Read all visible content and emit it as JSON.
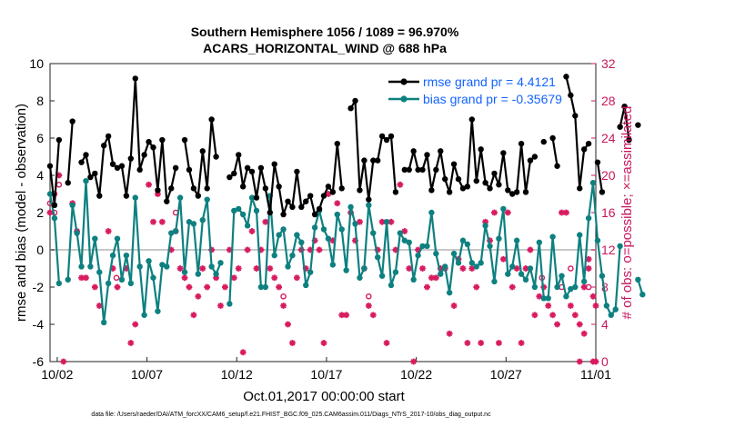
{
  "colors": {
    "rmse": "#000000",
    "bias": "#0e8080",
    "obs": "#d81b60",
    "zero_line": "#c8c8c8",
    "legend_text": "#1463ff",
    "right_axis": "#c8175d"
  },
  "chart_data": {
    "type": "line",
    "title": "Southern Hemisphere 1056 / 1089 = 96.970%",
    "subtitle": "ACARS_HORIZONTAL_WIND @ 688 hPa",
    "xlabel": "Oct.01,2017 00:00:00 start",
    "ylabel": "rmse and bias (model - observation)",
    "y2label": "# of obs: o=possible; ×=assimilated",
    "xlim": [
      1.6,
      32.0
    ],
    "ylim": [
      -6,
      10
    ],
    "y2lim": [
      0,
      32
    ],
    "grid": false,
    "legend_position": "top-right",
    "x_ticks": [
      {
        "value": 2.0,
        "label": "10/02"
      },
      {
        "value": 7.0,
        "label": "10/07"
      },
      {
        "value": 12.0,
        "label": "10/12"
      },
      {
        "value": 17.0,
        "label": "10/17"
      },
      {
        "value": 22.0,
        "label": "10/22"
      },
      {
        "value": 27.0,
        "label": "10/27"
      },
      {
        "value": 32.0,
        "label": "11/01"
      }
    ],
    "y_ticks": [
      -6,
      -4,
      -2,
      0,
      2,
      4,
      6,
      8,
      10
    ],
    "y2_ticks": [
      0,
      4,
      8,
      12,
      16,
      20,
      24,
      28,
      32
    ],
    "x_step": 0.25,
    "series": [
      {
        "name": "rmse grand pr = 4.4121",
        "x_start": 1.6,
        "values": [
          4.5,
          2.4,
          5.9,
          null,
          3.6,
          6.9,
          null,
          4.7,
          5.1,
          3.9,
          4.1,
          2.9,
          5.6,
          6.1,
          4.6,
          4.4,
          4.5,
          2.9,
          4.9,
          9.2,
          4.3,
          5.1,
          5.8,
          5.5,
          3.2,
          5.9,
          2.6,
          3.3,
          4.4,
          null,
          5.9,
          4.3,
          3.3,
          2.9,
          5.3,
          3.3,
          7.0,
          5.0,
          null,
          null,
          3.9,
          4.1,
          5.1,
          3.4,
          4.4,
          4.2,
          2.8,
          4.4,
          3.3,
          2.0,
          4.6,
          3.4,
          1.9,
          2.6,
          2.3,
          4.2,
          2.3,
          2.6,
          2.9,
          1.9,
          2.2,
          2.9,
          3.4,
          3.1,
          5.7,
          3.3,
          null,
          7.6,
          8.0,
          3.2,
          4.8,
          2.7,
          4.8,
          4.8,
          6.1,
          5.9,
          6.1,
          3.1,
          null,
          4.3,
          4.3,
          5.3,
          4.3,
          4.3,
          5.1,
          3.2,
          4.3,
          5.3,
          3.8,
          3.1,
          4.6,
          3.8,
          3.3,
          3.4,
          7.0,
          3.7,
          5.4,
          3.6,
          3.3,
          4.1,
          3.5,
          5.2,
          3.2,
          3.0,
          3.1,
          5.7,
          3.1,
          4.8,
          5.0,
          null,
          5.8,
          null,
          6.0,
          4.5,
          null,
          9.3,
          8.3,
          7.2,
          3.3,
          5.4,
          5.7,
          null,
          4.7,
          3.1,
          null,
          null,
          null,
          6.6,
          7.7,
          5.9,
          null,
          6.7
        ]
      },
      {
        "name": "bias grand pr = -0.35679",
        "x_start": 1.6,
        "values": [
          3.0,
          1.7,
          -1.8,
          null,
          -1.6,
          2.4,
          0.9,
          -0.9,
          3.7,
          -0.9,
          0.6,
          -1.2,
          -3.9,
          -1.8,
          -0.3,
          0.6,
          -1.6,
          -0.3,
          -1.8,
          2.8,
          -0.9,
          -3.5,
          -0.6,
          -1.5,
          -3.3,
          -0.8,
          -0.9,
          0.9,
          1.0,
          2.8,
          -1.2,
          1.5,
          1.4,
          -1.3,
          1.6,
          2.7,
          -0.9,
          -1.3,
          -0.7,
          null,
          -2.9,
          2.1,
          2.2,
          1.9,
          1.3,
          2.8,
          2.1,
          -2.0,
          -2.0,
          2.9,
          -0.3,
          0.8,
          1.1,
          -0.9,
          -0.3,
          0.8,
          0.4,
          -1.9,
          -1.2,
          1.2,
          2.1,
          1.1,
          0.6,
          -0.8,
          1.9,
          1.1,
          -1.1,
          2.3,
          1.4,
          -1.5,
          -1.0,
          2.4,
          0.9,
          -0.4,
          -1.4,
          1.5,
          -1.9,
          -1.2,
          0.9,
          0.5,
          0.4,
          -1.6,
          -0.3,
          0.2,
          0.2,
          2.0,
          -0.2,
          -1.3,
          -0.9,
          -2.3,
          -0.2,
          -0.7,
          0.5,
          0.3,
          -0.7,
          -0.9,
          -0.7,
          1.3,
          0.2,
          -1.7,
          0.6,
          2.2,
          -1.3,
          -0.9,
          0.5,
          -1.3,
          -1.6,
          -1.0,
          -2.0,
          0.4,
          -2.6,
          -2.6,
          0.7,
          -2.0,
          -1.4,
          -2.5,
          -2.1,
          -2.0,
          0.8,
          -1.7,
          1.7,
          3.6,
          0.5,
          -1.4,
          -3.0,
          -3.5,
          -3.2,
          0.2,
          null,
          null,
          null,
          -1.6,
          -2.4
        ]
      }
    ],
    "obs_possible_markers": [
      {
        "x": 1.6,
        "y": 17
      },
      {
        "x": 1.85,
        "y": 16
      },
      {
        "x": 1.85,
        "y": 18
      },
      {
        "x": 2.1,
        "y": 19
      },
      {
        "x": 5.3,
        "y": 9
      },
      {
        "x": 8.6,
        "y": 16
      },
      {
        "x": 14.6,
        "y": 7
      },
      {
        "x": 19.35,
        "y": 7
      },
      {
        "x": 29.0,
        "y": 9
      },
      {
        "x": 30.1,
        "y": 8
      },
      {
        "x": 30.6,
        "y": 10
      },
      {
        "x": 31.6,
        "y": 8
      }
    ],
    "obs_assimilated_markers": [
      {
        "x": 1.6,
        "y": 16
      },
      {
        "x": 2.1,
        "y": 20
      },
      {
        "x": 2.35,
        "y": 0
      },
      {
        "x": 2.85,
        "y": 17
      },
      {
        "x": 3.1,
        "y": 14
      },
      {
        "x": 3.35,
        "y": 9
      },
      {
        "x": 3.6,
        "y": 9
      },
      {
        "x": 4.1,
        "y": 8
      },
      {
        "x": 4.35,
        "y": 6
      },
      {
        "x": 4.85,
        "y": 14
      },
      {
        "x": 5.1,
        "y": 10
      },
      {
        "x": 5.35,
        "y": 8
      },
      {
        "x": 5.85,
        "y": 10
      },
      {
        "x": 6.1,
        "y": 2
      },
      {
        "x": 6.35,
        "y": 4
      },
      {
        "x": 7.1,
        "y": 19
      },
      {
        "x": 7.35,
        "y": 15
      },
      {
        "x": 7.6,
        "y": 18
      },
      {
        "x": 7.85,
        "y": 15
      },
      {
        "x": 8.35,
        "y": 12
      },
      {
        "x": 8.6,
        "y": 14
      },
      {
        "x": 8.85,
        "y": 10
      },
      {
        "x": 9.1,
        "y": 9
      },
      {
        "x": 9.35,
        "y": 8
      },
      {
        "x": 9.6,
        "y": 5
      },
      {
        "x": 9.85,
        "y": 7
      },
      {
        "x": 10.1,
        "y": 10
      },
      {
        "x": 10.35,
        "y": 8
      },
      {
        "x": 10.6,
        "y": 12
      },
      {
        "x": 10.85,
        "y": 9
      },
      {
        "x": 11.1,
        "y": 6
      },
      {
        "x": 11.35,
        "y": 8
      },
      {
        "x": 11.6,
        "y": 12
      },
      {
        "x": 11.85,
        "y": 9
      },
      {
        "x": 12.1,
        "y": 10
      },
      {
        "x": 12.35,
        "y": 1
      },
      {
        "x": 12.6,
        "y": 12
      },
      {
        "x": 12.85,
        "y": 14
      },
      {
        "x": 13.1,
        "y": 10
      },
      {
        "x": 13.35,
        "y": 12
      },
      {
        "x": 13.6,
        "y": 15
      },
      {
        "x": 13.85,
        "y": 10
      },
      {
        "x": 14.1,
        "y": 9
      },
      {
        "x": 14.35,
        "y": 8
      },
      {
        "x": 14.6,
        "y": 6
      },
      {
        "x": 14.85,
        "y": 4
      },
      {
        "x": 15.1,
        "y": 2
      },
      {
        "x": 15.35,
        "y": 9
      },
      {
        "x": 15.6,
        "y": 12
      },
      {
        "x": 15.85,
        "y": 10
      },
      {
        "x": 16.1,
        "y": 12
      },
      {
        "x": 16.35,
        "y": 13
      },
      {
        "x": 16.6,
        "y": 12
      },
      {
        "x": 16.85,
        "y": 2
      },
      {
        "x": 17.1,
        "y": 18
      },
      {
        "x": 17.35,
        "y": 13
      },
      {
        "x": 17.6,
        "y": 17
      },
      {
        "x": 17.85,
        "y": 5
      },
      {
        "x": 18.1,
        "y": 5
      },
      {
        "x": 18.35,
        "y": 16
      },
      {
        "x": 18.6,
        "y": 13
      },
      {
        "x": 18.85,
        "y": 15
      },
      {
        "x": 19.1,
        "y": 10
      },
      {
        "x": 19.35,
        "y": 6
      },
      {
        "x": 19.6,
        "y": 5
      },
      {
        "x": 19.85,
        "y": 12
      },
      {
        "x": 20.1,
        "y": 15
      },
      {
        "x": 20.35,
        "y": 2
      },
      {
        "x": 20.6,
        "y": 15
      },
      {
        "x": 20.85,
        "y": 12
      },
      {
        "x": 21.1,
        "y": 19
      },
      {
        "x": 21.35,
        "y": 14
      },
      {
        "x": 21.6,
        "y": 10
      },
      {
        "x": 21.85,
        "y": 0
      },
      {
        "x": 22.1,
        "y": 12
      },
      {
        "x": 22.35,
        "y": 10
      },
      {
        "x": 22.6,
        "y": 8
      },
      {
        "x": 22.85,
        "y": 9
      },
      {
        "x": 23.1,
        "y": 9
      },
      {
        "x": 23.35,
        "y": 10
      },
      {
        "x": 23.6,
        "y": 10
      },
      {
        "x": 23.85,
        "y": 3
      },
      {
        "x": 24.1,
        "y": 6
      },
      {
        "x": 24.35,
        "y": 11
      },
      {
        "x": 24.6,
        "y": 10
      },
      {
        "x": 24.85,
        "y": 2
      },
      {
        "x": 25.1,
        "y": 10
      },
      {
        "x": 25.35,
        "y": 8
      },
      {
        "x": 25.6,
        "y": 2
      },
      {
        "x": 25.85,
        "y": 15
      },
      {
        "x": 26.1,
        "y": 13
      },
      {
        "x": 26.35,
        "y": 16
      },
      {
        "x": 26.6,
        "y": 2
      },
      {
        "x": 26.85,
        "y": 11
      },
      {
        "x": 27.1,
        "y": 16
      },
      {
        "x": 27.35,
        "y": 8
      },
      {
        "x": 27.6,
        "y": 10
      },
      {
        "x": 27.85,
        "y": 2
      },
      {
        "x": 28.1,
        "y": 10
      },
      {
        "x": 28.35,
        "y": 12
      },
      {
        "x": 28.6,
        "y": 5
      },
      {
        "x": 28.85,
        "y": 7
      },
      {
        "x": 29.1,
        "y": 8
      },
      {
        "x": 29.35,
        "y": 6
      },
      {
        "x": 29.6,
        "y": 5
      },
      {
        "x": 29.85,
        "y": 4
      },
      {
        "x": 30.1,
        "y": 16
      },
      {
        "x": 30.35,
        "y": 16
      },
      {
        "x": 30.6,
        "y": 6
      },
      {
        "x": 30.85,
        "y": 5
      },
      {
        "x": 31.1,
        "y": 4
      },
      {
        "x": 31.35,
        "y": 8
      },
      {
        "x": 31.6,
        "y": 10
      },
      {
        "x": 31.85,
        "y": 7
      },
      {
        "x": 31.6,
        "y": 11
      },
      {
        "x": 31.35,
        "y": 3
      },
      {
        "x": 32.0,
        "y": 6
      },
      {
        "x": 31.85,
        "y": 0
      },
      {
        "x": 31.1,
        "y": 0
      },
      {
        "x": 32.0,
        "y": 0
      }
    ],
    "footer": "data file: /Users/raeder/DAI/ATM_forcXX/CAM6_setup/f.e21.FHIST_BGC.f09_025.CAM6assim.011/Diags_NTrS_2017-10/obs_diag_output.nc"
  }
}
